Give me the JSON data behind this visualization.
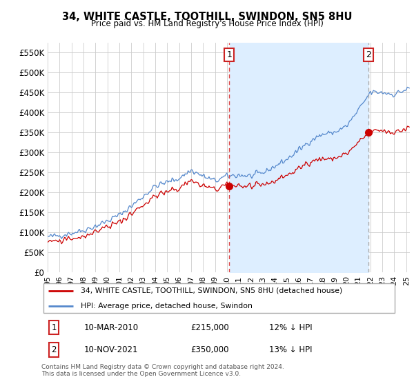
{
  "title": "34, WHITE CASTLE, TOOTHILL, SWINDON, SN5 8HU",
  "subtitle": "Price paid vs. HM Land Registry's House Price Index (HPI)",
  "legend_line1": "34, WHITE CASTLE, TOOTHILL, SWINDON, SN5 8HU (detached house)",
  "legend_line2": "HPI: Average price, detached house, Swindon",
  "note": "Contains HM Land Registry data © Crown copyright and database right 2024.\nThis data is licensed under the Open Government Licence v3.0.",
  "transaction1_date": "10-MAR-2010",
  "transaction1_price": "£215,000",
  "transaction1_hpi": "12% ↓ HPI",
  "transaction2_date": "10-NOV-2021",
  "transaction2_price": "£350,000",
  "transaction2_hpi": "13% ↓ HPI",
  "red_color": "#cc0000",
  "blue_color": "#5588cc",
  "fill_color": "#ddeeff",
  "dashed_red": "#dd4444",
  "dashed_grey": "#aaaaaa",
  "ylim": [
    0,
    575000
  ],
  "yticks": [
    0,
    50000,
    100000,
    150000,
    200000,
    250000,
    300000,
    350000,
    400000,
    450000,
    500000,
    550000
  ],
  "transaction1_x": 2010.19,
  "transaction1_y": 215000,
  "transaction2_x": 2021.86,
  "transaction2_y": 350000,
  "xlim_start": 1995,
  "xlim_end": 2025.3
}
